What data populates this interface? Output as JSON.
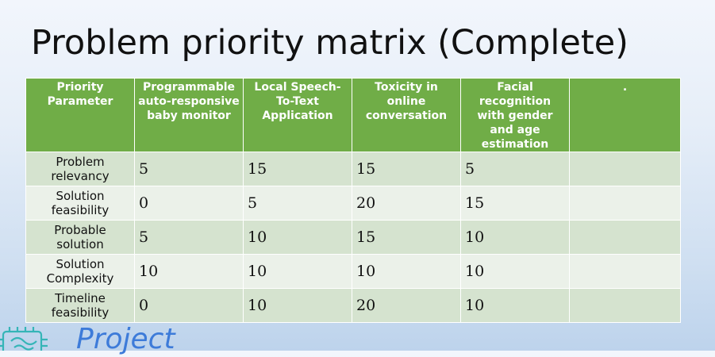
{
  "slide": {
    "title": "Problem priority matrix (Complete)"
  },
  "table": {
    "headers": [
      "Priority Parameter",
      "Programmable auto-responsive baby monitor",
      "Local Speech-To-Text Application",
      "Toxicity in online conversation",
      "Facial recognition with gender and age estimation",
      "."
    ],
    "rows": [
      {
        "param": "Problem relevancy",
        "values": [
          "5",
          "15",
          "15",
          "5",
          ""
        ]
      },
      {
        "param": "Solution feasibility",
        "values": [
          "0",
          "5",
          "20",
          "15",
          ""
        ]
      },
      {
        "param": "Probable solution",
        "values": [
          "5",
          "10",
          "15",
          "10",
          ""
        ]
      },
      {
        "param": "Solution Complexity",
        "values": [
          "10",
          "10",
          "10",
          "10",
          ""
        ]
      },
      {
        "param": "Timeline feasibility",
        "values": [
          "0",
          "10",
          "20",
          "10",
          ""
        ]
      }
    ]
  },
  "footer": {
    "brand_text": "Project",
    "logo_icon": "chip-icon"
  },
  "colors": {
    "header_green": "#70ad47",
    "row_dark": "#d5e3cf",
    "row_light": "#ebf1e9",
    "brand_blue": "#3d7bd9",
    "logo_teal": "#35b5b7"
  }
}
